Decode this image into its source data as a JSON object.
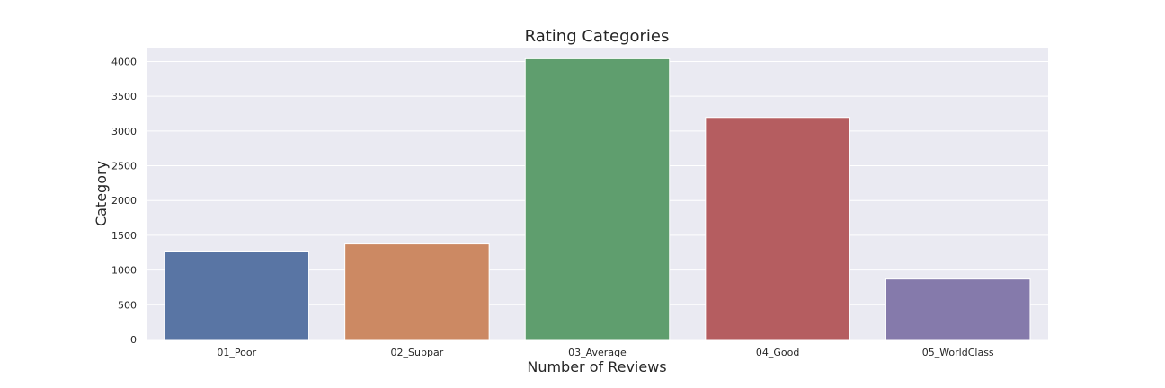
{
  "chart_data": {
    "type": "bar",
    "title": "Rating Categories",
    "xlabel": "Number of Reviews",
    "ylabel": "Category",
    "categories": [
      "01_Poor",
      "02_Subpar",
      "03_Average",
      "04_Good",
      "05_WorldClass"
    ],
    "values": [
      1260,
      1375,
      4040,
      3195,
      870
    ],
    "ylim": [
      0,
      4200
    ],
    "yticks": [
      0,
      500,
      1000,
      1500,
      2000,
      2500,
      3000,
      3500,
      4000
    ],
    "colors": [
      "#5975a4",
      "#cc8963",
      "#5f9e6e",
      "#b55d60",
      "#857aab"
    ],
    "background": "#eaeaf2",
    "gridcolor": "#ffffff",
    "grid": true,
    "legend": "none"
  }
}
